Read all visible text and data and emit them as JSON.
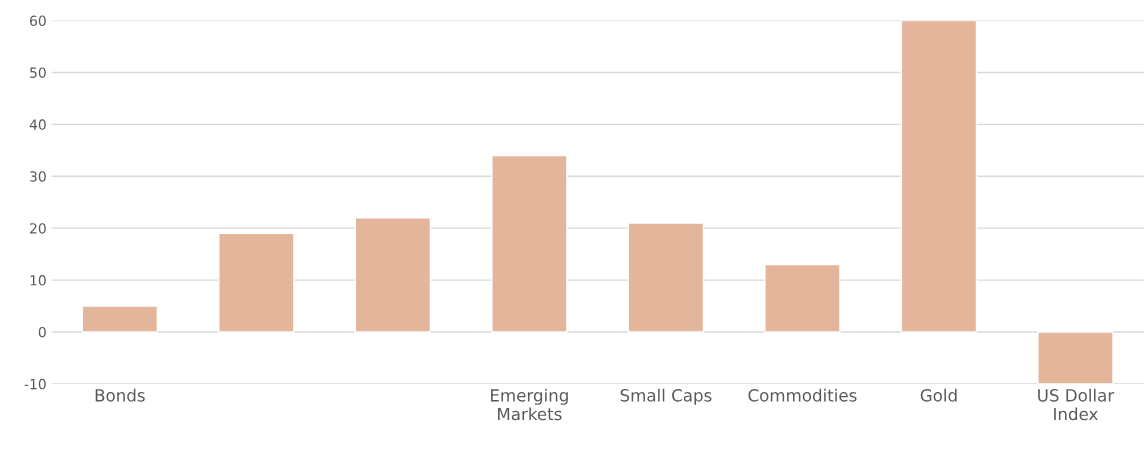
{
  "chart_data": {
    "type": "bar",
    "categories": [
      "Bonds",
      null,
      null,
      "Emerging Markets",
      "Small Caps",
      "Commodities",
      "Gold",
      "US Dollar Index"
    ],
    "values": [
      5,
      19,
      22,
      34,
      21,
      13,
      60,
      -10
    ],
    "color": "#e3b59b",
    "ylim": [
      -10,
      60
    ],
    "yticks": [
      -10,
      0,
      10,
      20,
      30,
      40,
      50,
      60
    ],
    "grid": "y"
  }
}
